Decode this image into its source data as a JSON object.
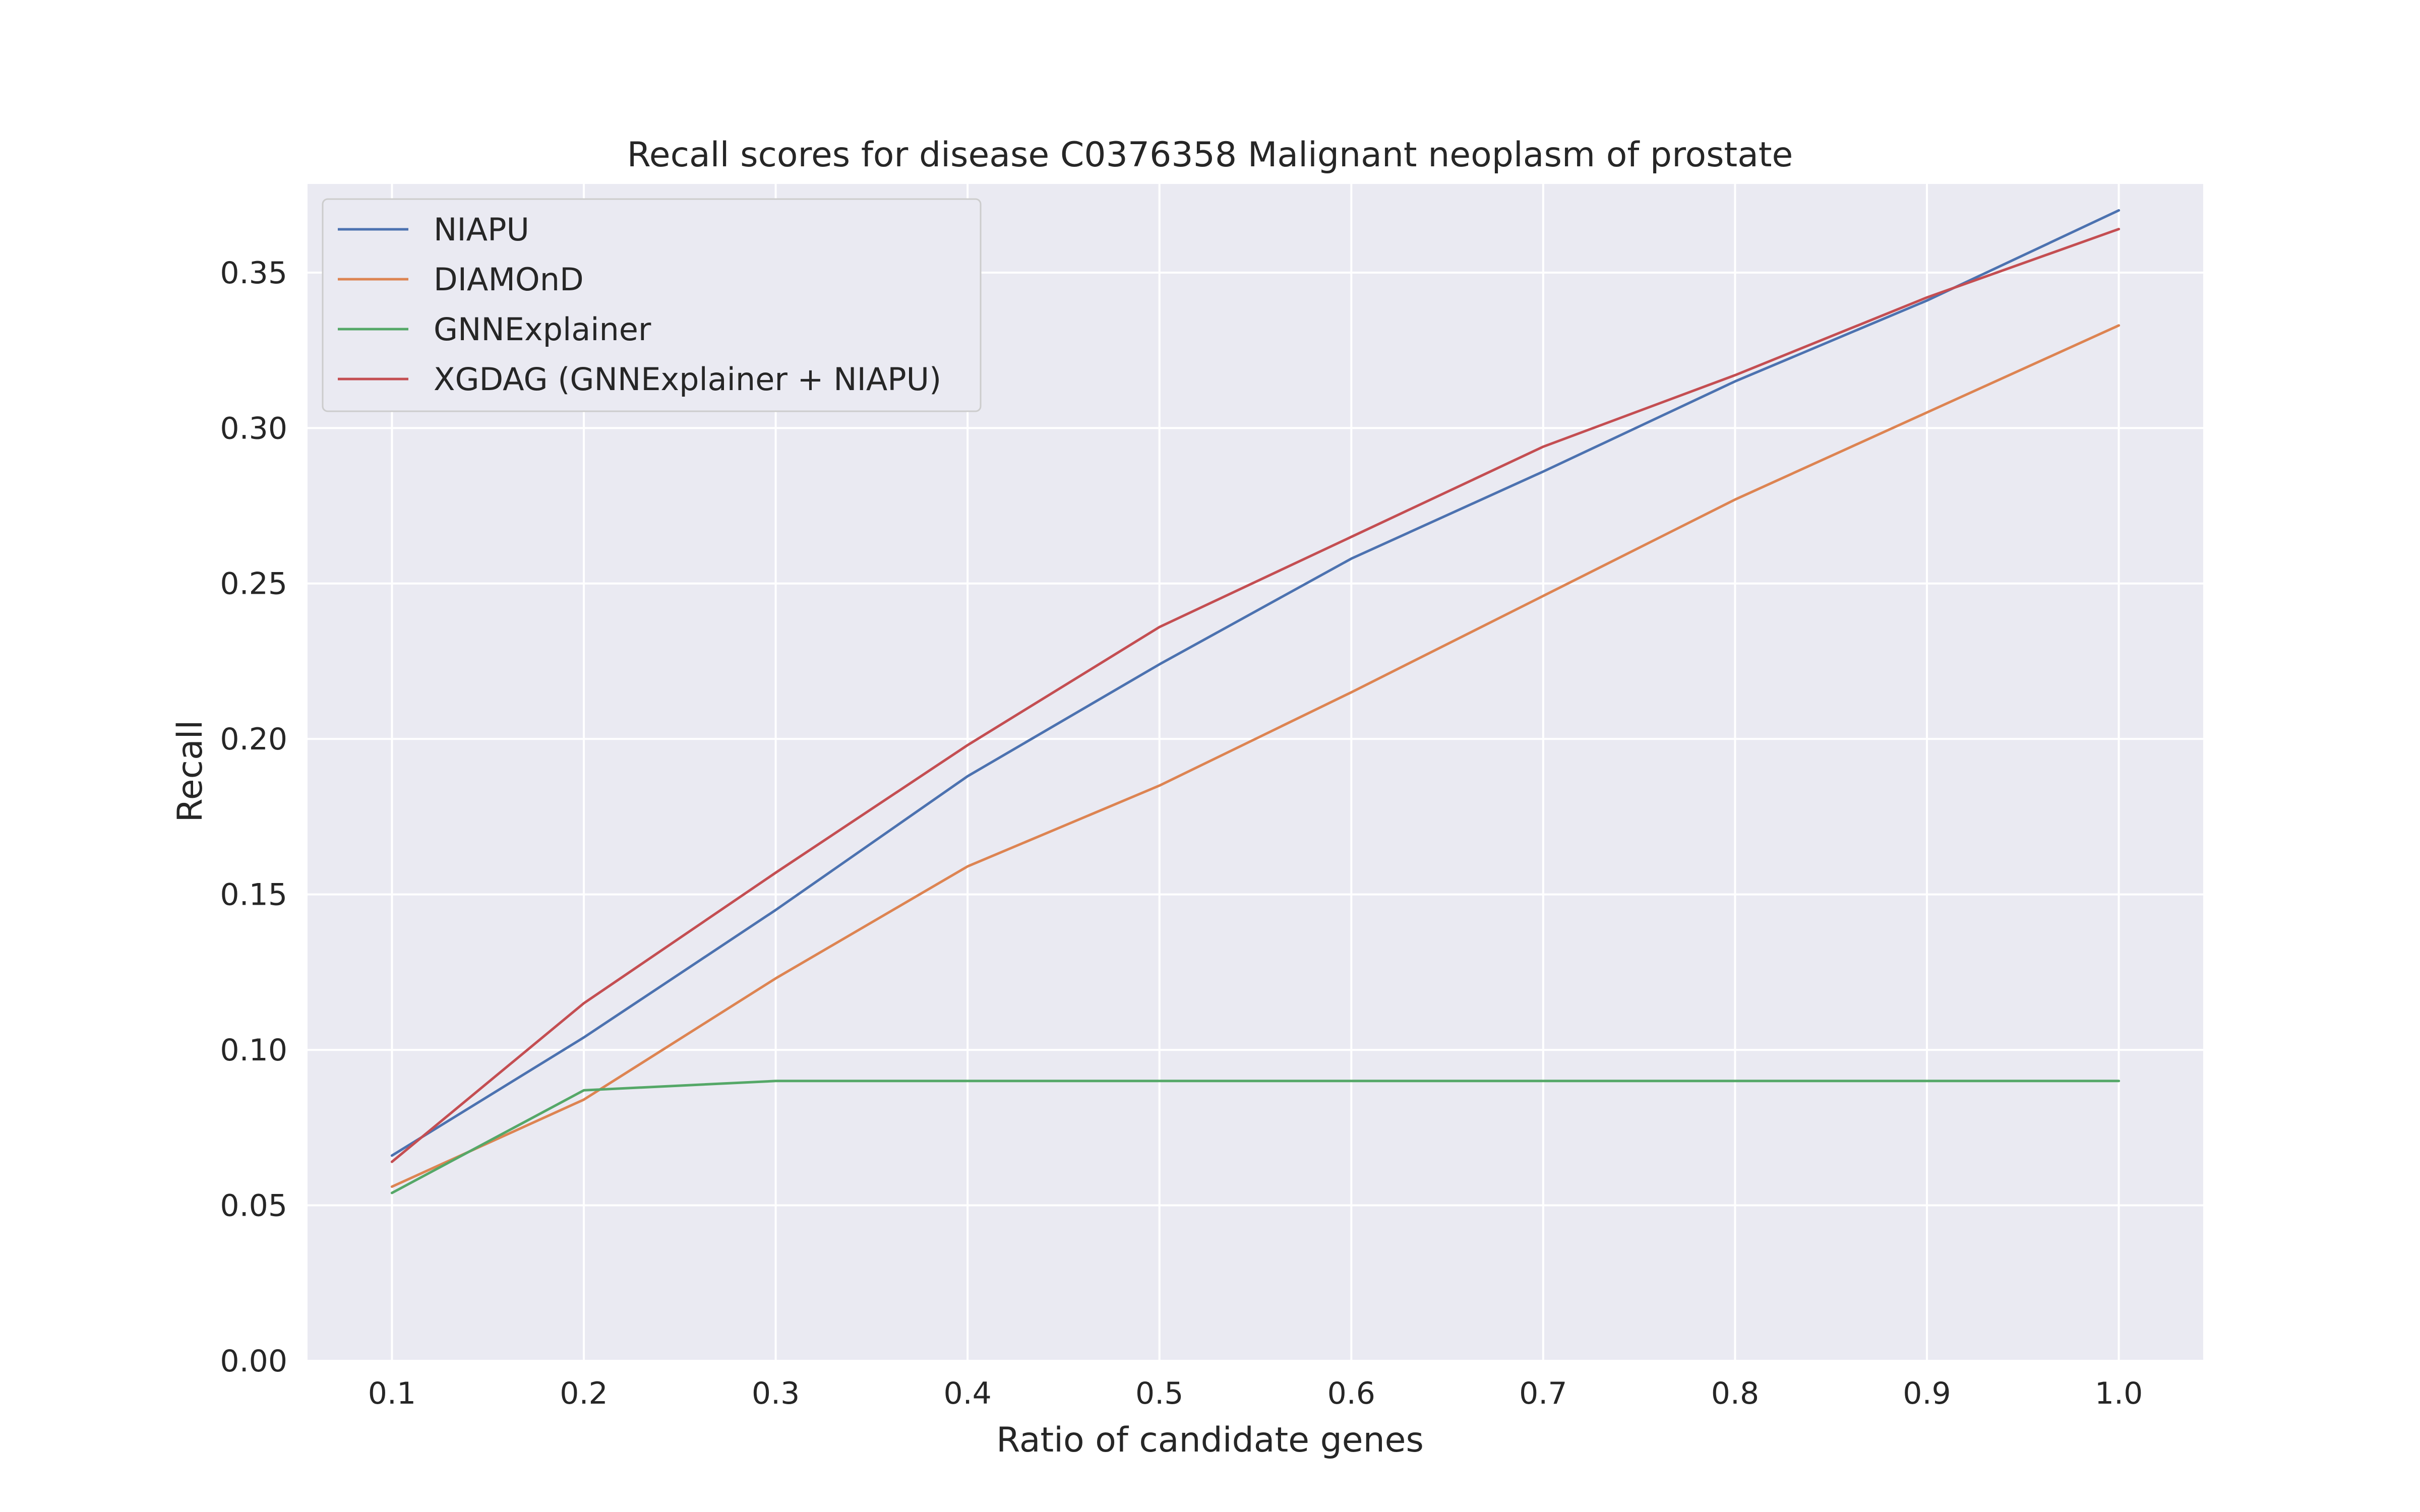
{
  "chart_data": {
    "type": "line",
    "title": "Recall scores for disease C0376358 Malignant neoplasm of prostate",
    "xlabel": "Ratio of candidate genes",
    "ylabel": "Recall",
    "x": [
      0.1,
      0.2,
      0.3,
      0.4,
      0.5,
      0.6,
      0.7,
      0.8,
      0.9,
      1.0
    ],
    "xticks": [
      "0.1",
      "0.2",
      "0.3",
      "0.4",
      "0.5",
      "0.6",
      "0.7",
      "0.8",
      "0.9",
      "1.0"
    ],
    "yticks": [
      "0.00",
      "0.05",
      "0.10",
      "0.15",
      "0.20",
      "0.25",
      "0.30",
      "0.35"
    ],
    "xlim": [
      0.056,
      1.044
    ],
    "ylim": [
      0.0,
      0.3785
    ],
    "grid": true,
    "legend_position": "top-left",
    "background": "#eaeaf2",
    "series": [
      {
        "name": "NIAPU",
        "color": "#4c72b0",
        "values": [
          0.066,
          0.104,
          0.145,
          0.188,
          0.224,
          0.258,
          0.286,
          0.315,
          0.341,
          0.37
        ]
      },
      {
        "name": "DIAMOnD",
        "color": "#dd8452",
        "values": [
          0.056,
          0.084,
          0.123,
          0.159,
          0.185,
          0.215,
          0.246,
          0.277,
          0.305,
          0.333
        ]
      },
      {
        "name": "GNNExplainer",
        "color": "#55a868",
        "values": [
          0.054,
          0.087,
          0.09,
          0.09,
          0.09,
          0.09,
          0.09,
          0.09,
          0.09,
          0.09
        ]
      },
      {
        "name": "XGDAG (GNNExplainer + NIAPU)",
        "color": "#c44e52",
        "values": [
          0.064,
          0.115,
          0.157,
          0.198,
          0.236,
          0.265,
          0.294,
          0.317,
          0.342,
          0.364
        ]
      }
    ]
  }
}
